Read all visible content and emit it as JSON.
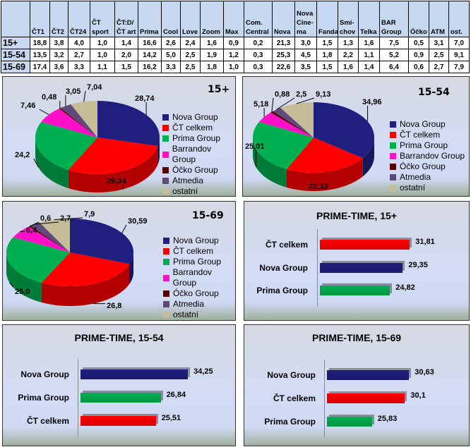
{
  "table": {
    "headers": [
      "",
      "ČT1",
      "ČT2",
      "ČT24",
      "ČT sport",
      "ČT:D/ ČT art",
      "Prima",
      "Cool",
      "Love",
      "Zoom",
      "Max",
      "Com. Central",
      "Nova",
      "Nova Cine-ma",
      "Fanda",
      "Smí-chov",
      "Telka",
      "BAR Group",
      "Óčko",
      "ATM",
      "ost."
    ],
    "rows": [
      [
        "15+",
        "18,8",
        "3,8",
        "4,0",
        "1,0",
        "1,4",
        "16,6",
        "2,6",
        "2,4",
        "1,6",
        "0,9",
        "0,2",
        "21,3",
        "3,0",
        "1,5",
        "1,3",
        "1,6",
        "7,5",
        "0,5",
        "3,1",
        "7,0"
      ],
      [
        "15-54",
        "13,5",
        "3,2",
        "2,7",
        "1,0",
        "2,0",
        "14,2",
        "5,0",
        "2,5",
        "1,9",
        "1,2",
        "0,3",
        "25,3",
        "4,5",
        "1,8",
        "2,2",
        "1,1",
        "5,2",
        "0,9",
        "2,5",
        "9,1"
      ],
      [
        "15-69",
        "17,4",
        "3,6",
        "3,3",
        "1,1",
        "1,5",
        "16,2",
        "3,3",
        "2,5",
        "1,8",
        "1,0",
        "0,3",
        "22,6",
        "3,5",
        "1,5",
        "1,6",
        "1,4",
        "6,4",
        "0,6",
        "2,7",
        "7,9"
      ]
    ]
  },
  "chart_data": [
    {
      "type": "pie",
      "title": "15+",
      "categories": [
        "Nova Group",
        "ČT celkem",
        "Prima Group",
        "Barrandov Group",
        "Óčko Group",
        "Atmedia",
        "ostatní"
      ],
      "values": [
        28.74,
        29.04,
        24.2,
        7.46,
        0.48,
        3.05,
        7.04
      ],
      "labels": [
        "28,74",
        "29,04",
        "24,2",
        "7,46",
        "0,48",
        "3,05",
        "7,04"
      ],
      "legend": "right",
      "style": "3d"
    },
    {
      "type": "pie",
      "title": "15-54",
      "categories": [
        "Nova Group",
        "ČT celkem",
        "Prima Group",
        "Barrandov Group",
        "Óčko Group",
        "Atmedia",
        "ostatní"
      ],
      "values": [
        34.96,
        22.33,
        25.01,
        5.18,
        0.88,
        2.5,
        9.13
      ],
      "labels": [
        "34,96",
        "22,33",
        "25,01",
        "5,18",
        "0,88",
        "2,5",
        "9,13"
      ],
      "legend": "right",
      "style": "3d"
    },
    {
      "type": "pie",
      "title": "15-69",
      "categories": [
        "Nova Group",
        "ČT celkem",
        "Prima Group",
        "Barrandov Group",
        "Óčko Group",
        "Atmedia",
        "ostatní"
      ],
      "values": [
        30.59,
        26.8,
        25.0,
        6.4,
        0.6,
        2.7,
        7.9
      ],
      "labels": [
        "30,59",
        "26,8",
        "25,0",
        "6,4",
        "0,6",
        "2,7",
        "7,9"
      ],
      "legend": "right",
      "style": "3d"
    },
    {
      "type": "bar",
      "orientation": "horizontal",
      "title": "PRIME-TIME, 15+",
      "categories": [
        "ČT celkem",
        "Nova Group",
        "Prima Group"
      ],
      "values": [
        31.81,
        29.35,
        24.82
      ],
      "labels": [
        "31,81",
        "29,35",
        "24,82"
      ],
      "xlim": [
        0,
        40
      ]
    },
    {
      "type": "bar",
      "orientation": "horizontal",
      "title": "PRIME-TIME, 15-54",
      "categories": [
        "Nova Group",
        "Prima Group",
        "ČT celkem"
      ],
      "values": [
        34.25,
        26.84,
        25.51
      ],
      "labels": [
        "34,25",
        "26,84",
        "25,51"
      ],
      "xlim": [
        5,
        40
      ]
    },
    {
      "type": "bar",
      "orientation": "horizontal",
      "title": "PRIME-TIME, 15-69",
      "categories": [
        "Nova Group",
        "ČT celkem",
        "Prima Group"
      ],
      "values": [
        30.63,
        30.1,
        25.83
      ],
      "labels": [
        "30,63",
        "30,1",
        "25,83"
      ],
      "xlim": [
        20,
        35
      ]
    }
  ],
  "colors": {
    "Nova Group": "#1f1f7f",
    "ČT celkem": "#ff0000",
    "Prima Group": "#00b050",
    "Barrandov Group": "#ff10c8",
    "Óčko Group": "#5a0000",
    "Atmedia": "#5f4a7b",
    "ostatní": "#c4bd97"
  }
}
